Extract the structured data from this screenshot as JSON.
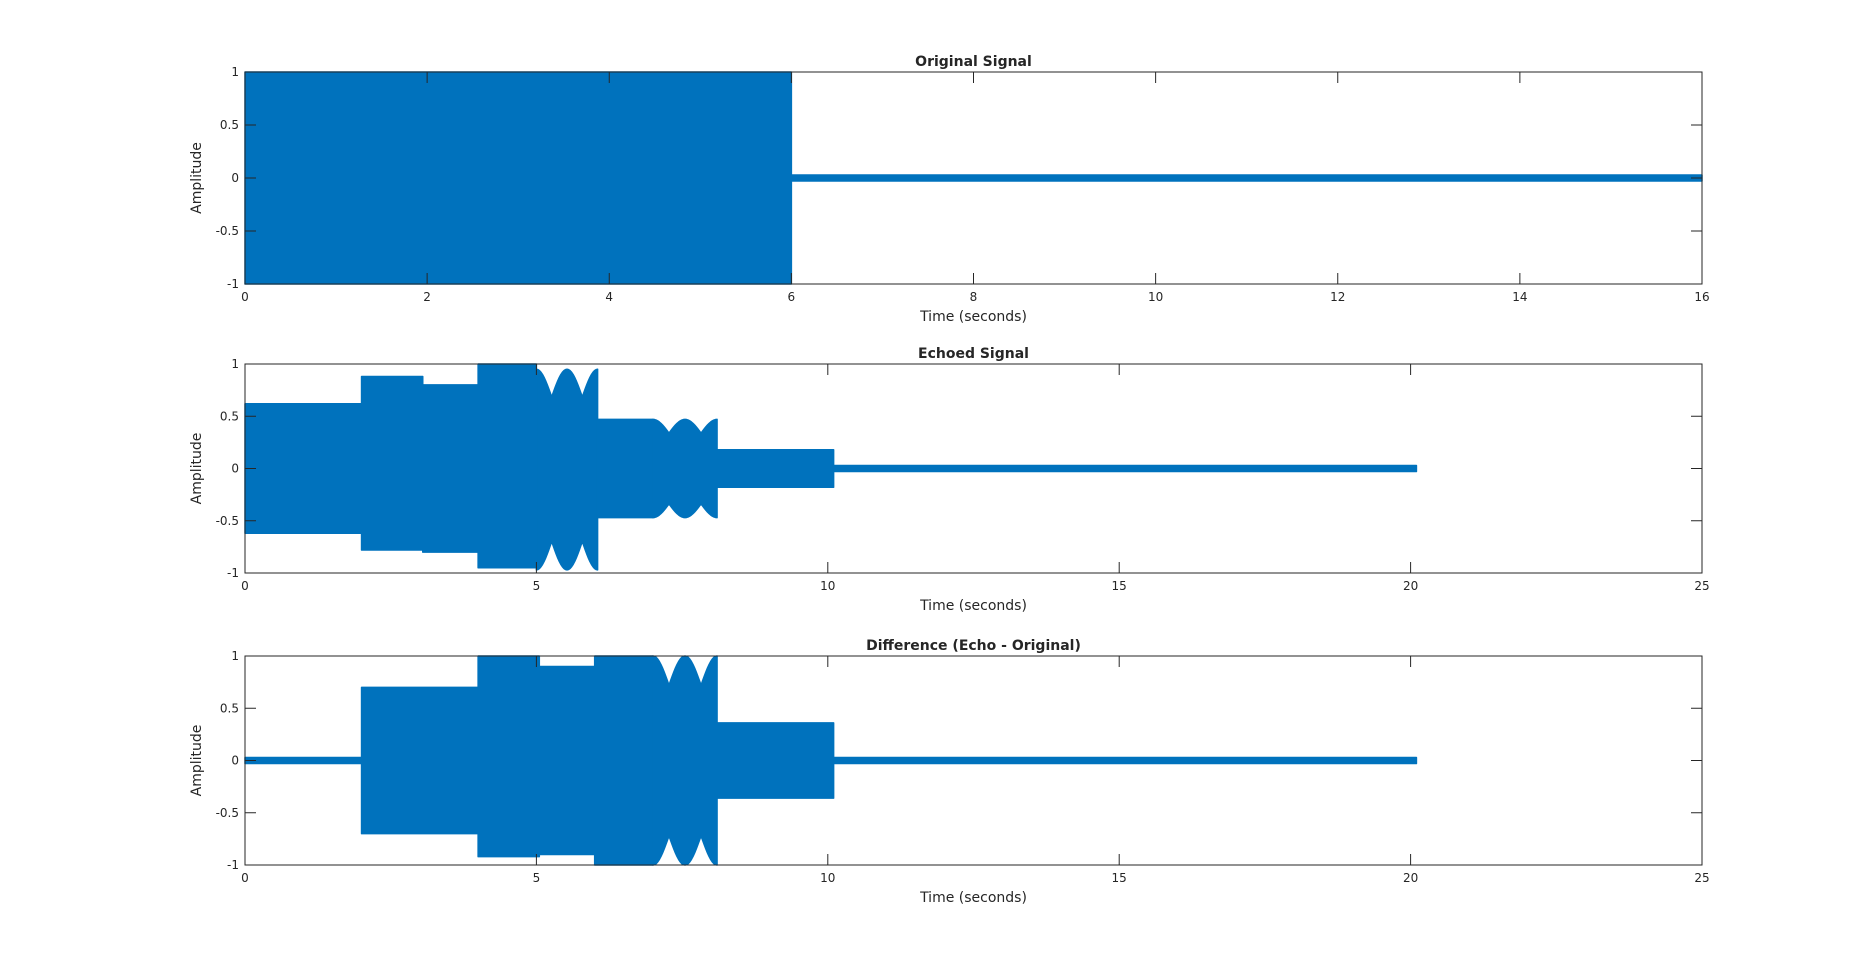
{
  "figure": {
    "background": "#ffffff",
    "line_color": "#0072BD",
    "axes_color": "#262626"
  },
  "chart_data": [
    {
      "type": "line",
      "title": "Original Signal",
      "xlabel": "Time (seconds)",
      "ylabel": "Amplitude",
      "xlim": [
        0,
        16
      ],
      "ylim": [
        -1,
        1
      ],
      "xticks": [
        0,
        2,
        4,
        6,
        8,
        10,
        12,
        14,
        16
      ],
      "yticks": [
        -1,
        -0.5,
        0,
        0.5,
        1
      ],
      "grid": false,
      "series": [
        {
          "color": "#0072BD",
          "envelope": [
            {
              "x0": 0,
              "x1": 6,
              "upper": [
                1,
                1
              ],
              "lower": [
                -1,
                -1
              ]
            },
            {
              "x0": 6,
              "x1": 16,
              "upper": [
                0.02,
                0.02
              ],
              "lower": [
                -0.02,
                -0.02
              ]
            }
          ]
        }
      ]
    },
    {
      "type": "line",
      "title": "Echoed Signal",
      "xlabel": "Time (seconds)",
      "ylabel": "Amplitude",
      "xlim": [
        0,
        25
      ],
      "ylim": [
        -1,
        1
      ],
      "xticks": [
        0,
        5,
        10,
        15,
        20,
        25
      ],
      "yticks": [
        -1,
        -0.5,
        0,
        0.5,
        1
      ],
      "grid": false,
      "series": [
        {
          "color": "#0072BD",
          "envelope": [
            {
              "x0": 0,
              "x1": 2,
              "upper": [
                0.62,
                0.62
              ],
              "lower": [
                -0.62,
                -0.62
              ]
            },
            {
              "x0": 2,
              "x1": 3.05,
              "upper": [
                0.88,
                0.88
              ],
              "lower": [
                -0.78,
                -0.78
              ]
            },
            {
              "x0": 3.05,
              "x1": 4,
              "upper": [
                0.8,
                0.8
              ],
              "lower": [
                -0.8,
                -0.8
              ]
            },
            {
              "x0": 4,
              "x1": 5,
              "upper": [
                1,
                1
              ],
              "lower": [
                -0.95,
                -0.95
              ]
            },
            {
              "x0": 5,
              "x1": 6.05,
              "upper": [
                0.95,
                0.95
              ],
              "lower": [
                -0.97,
                -0.97
              ],
              "wobble": 2
            },
            {
              "x0": 6.05,
              "x1": 7,
              "upper": [
                0.47,
                0.47
              ],
              "lower": [
                -0.47,
                -0.47
              ]
            },
            {
              "x0": 7,
              "x1": 8.1,
              "upper": [
                0.47,
                0.47
              ],
              "lower": [
                -0.47,
                -0.47
              ],
              "wobble": 2
            },
            {
              "x0": 8.1,
              "x1": 10.1,
              "upper": [
                0.18,
                0.18
              ],
              "lower": [
                -0.18,
                -0.18
              ]
            },
            {
              "x0": 10.1,
              "x1": 20.1,
              "upper": [
                0.02,
                0.02
              ],
              "lower": [
                -0.02,
                -0.02
              ]
            }
          ]
        }
      ]
    },
    {
      "type": "line",
      "title": "Difference (Echo - Original)",
      "xlabel": "Time (seconds)",
      "ylabel": "Amplitude",
      "xlim": [
        0,
        25
      ],
      "ylim": [
        -1,
        1
      ],
      "xticks": [
        0,
        5,
        10,
        15,
        20,
        25
      ],
      "yticks": [
        -1,
        -0.5,
        0,
        0.5,
        1
      ],
      "grid": false,
      "series": [
        {
          "color": "#0072BD",
          "envelope": [
            {
              "x0": 0,
              "x1": 2,
              "upper": [
                0.02,
                0.02
              ],
              "lower": [
                -0.02,
                -0.02
              ]
            },
            {
              "x0": 2,
              "x1": 4,
              "upper": [
                0.7,
                0.7
              ],
              "lower": [
                -0.7,
                -0.7
              ]
            },
            {
              "x0": 4,
              "x1": 5.05,
              "upper": [
                1,
                1
              ],
              "lower": [
                -0.92,
                -0.92
              ]
            },
            {
              "x0": 5.05,
              "x1": 6,
              "upper": [
                0.9,
                0.9
              ],
              "lower": [
                -0.9,
                -0.9
              ]
            },
            {
              "x0": 6,
              "x1": 7,
              "upper": [
                1,
                1
              ],
              "lower": [
                -1,
                -1
              ]
            },
            {
              "x0": 7,
              "x1": 8.1,
              "upper": [
                1,
                1
              ],
              "lower": [
                -1,
                -1
              ],
              "wobble": 2
            },
            {
              "x0": 8.1,
              "x1": 10.1,
              "upper": [
                0.36,
                0.36
              ],
              "lower": [
                -0.36,
                -0.36
              ]
            },
            {
              "x0": 10.1,
              "x1": 20.1,
              "upper": [
                0.02,
                0.02
              ],
              "lower": [
                -0.02,
                -0.02
              ]
            }
          ]
        }
      ]
    }
  ]
}
